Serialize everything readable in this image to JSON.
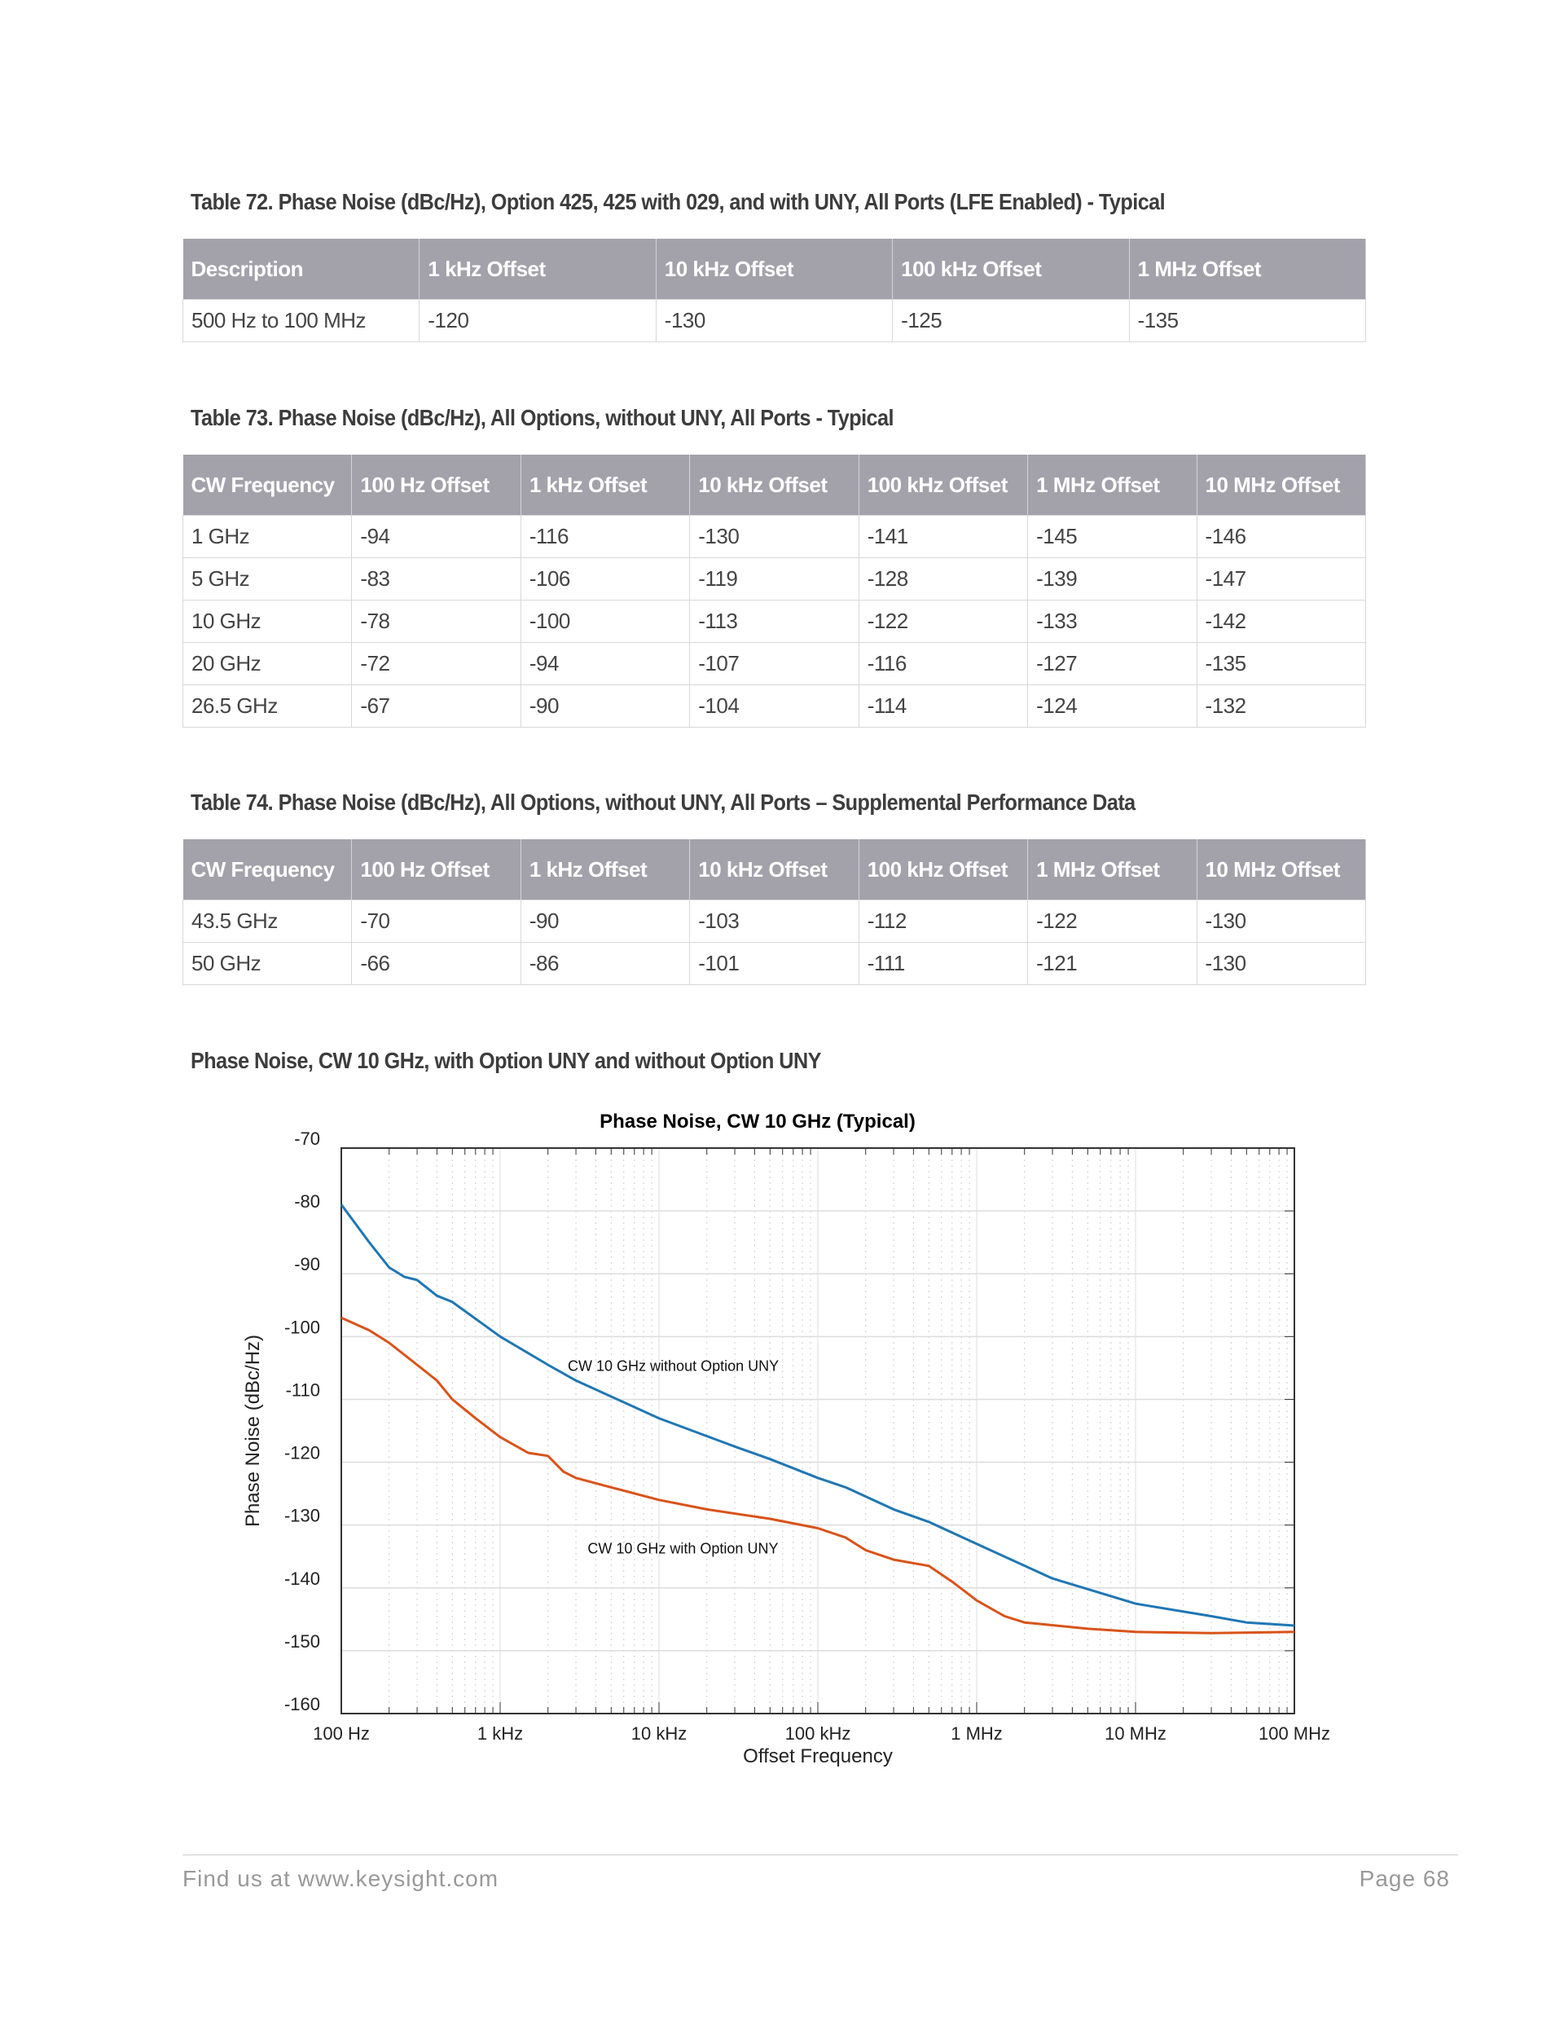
{
  "table72": {
    "title": "Table 72. Phase Noise (dBc/Hz), Option 425, 425 with 029, and with UNY, All Ports (LFE Enabled) - Typical",
    "headers": [
      "Description",
      "1 kHz Offset",
      "10 kHz Offset",
      "100 kHz Offset",
      "1 MHz Offset"
    ],
    "rows": [
      [
        "500 Hz to 100 MHz",
        "-120",
        "-130",
        "-125",
        "-135"
      ]
    ]
  },
  "table73": {
    "title": "Table 73. Phase Noise (dBc/Hz), All Options, without UNY, All Ports - Typical",
    "headers": [
      "CW Frequency",
      "100 Hz Offset",
      "1 kHz Offset",
      "10 kHz Offset",
      "100 kHz Offset",
      "1 MHz Offset",
      "10 MHz Offset"
    ],
    "rows": [
      [
        "1 GHz",
        "-94",
        "-116",
        "-130",
        "-141",
        "-145",
        "-146"
      ],
      [
        "5 GHz",
        "-83",
        "-106",
        "-119",
        "-128",
        "-139",
        "-147"
      ],
      [
        "10 GHz",
        "-78",
        "-100",
        "-113",
        "-122",
        "-133",
        "-142"
      ],
      [
        "20 GHz",
        "-72",
        "-94",
        "-107",
        "-116",
        "-127",
        "-135"
      ],
      [
        "26.5 GHz",
        "-67",
        "-90",
        "-104",
        "-114",
        "-124",
        "-132"
      ]
    ]
  },
  "table74": {
    "title": "Table 74. Phase Noise (dBc/Hz), All Options, without UNY, All Ports – Supplemental Performance Data",
    "headers": [
      "CW Frequency",
      "100 Hz Offset",
      "1 kHz Offset",
      "10 kHz Offset",
      "100 kHz Offset",
      "1 MHz Offset",
      "10 MHz Offset"
    ],
    "rows": [
      [
        "43.5 GHz",
        "-70",
        "-90",
        "-103",
        "-112",
        "-122",
        "-130"
      ],
      [
        "50 GHz",
        "-66",
        "-86",
        "-101",
        "-111",
        "-121",
        "-130"
      ]
    ]
  },
  "chart_section_title": "Phase Noise, CW 10 GHz, with Option UNY and without Option UNY",
  "chart_data": {
    "type": "line",
    "title": "Phase Noise, CW 10 GHz (Typical)",
    "xlabel": "Offset Frequency",
    "ylabel": "Phase Noise (dBc/Hz)",
    "xscale": "log",
    "xlim": [
      100,
      100000000
    ],
    "ylim": [
      -160,
      -70
    ],
    "xticks": [
      100,
      1000,
      10000,
      100000,
      1000000,
      10000000,
      100000000
    ],
    "xtick_labels": [
      "100 Hz",
      "1 kHz",
      "10 kHz",
      "100 kHz",
      "1 MHz",
      "10 MHz",
      "100 MHz"
    ],
    "yticks": [
      -70,
      -80,
      -90,
      -100,
      -110,
      -120,
      -130,
      -140,
      -150,
      -160
    ],
    "ytick_labels": [
      "-70",
      "-80",
      "-90",
      "-100",
      "-110",
      "-120",
      "-130",
      "-140",
      "-150",
      "-160"
    ],
    "grid": true,
    "series": [
      {
        "name": "CW 10 GHz without Option UNY",
        "color": "#1f77b4",
        "x": [
          100,
          150,
          200,
          250,
          300,
          400,
          500,
          1000,
          2000,
          3000,
          10000,
          30000,
          50000,
          100000,
          150000,
          300000,
          500000,
          1000000,
          3000000,
          10000000,
          30000000,
          50000000,
          100000000
        ],
        "y": [
          -79,
          -85,
          -89,
          -90.5,
          -91,
          -93.5,
          -94.5,
          -100,
          -104.5,
          -107,
          -113,
          -117.5,
          -119.5,
          -122.5,
          -124,
          -127.5,
          -129.5,
          -133,
          -138.5,
          -142.5,
          -144.5,
          -145.5,
          -146
        ]
      },
      {
        "name": "CW 10 GHz with Option UNY",
        "color": "#d95319",
        "x": [
          100,
          150,
          200,
          300,
          400,
          500,
          700,
          1000,
          1500,
          2000,
          2500,
          3000,
          5000,
          10000,
          20000,
          50000,
          100000,
          150000,
          200000,
          300000,
          500000,
          700000,
          1000000,
          1500000,
          2000000,
          5000000,
          10000000,
          30000000,
          100000000
        ],
        "y": [
          -97,
          -99,
          -101,
          -104.5,
          -107,
          -110,
          -113,
          -116,
          -118.5,
          -119,
          -121.5,
          -122.5,
          -124,
          -126,
          -127.5,
          -129,
          -130.5,
          -132,
          -134,
          -135.5,
          -136.5,
          -139,
          -142,
          -144.5,
          -145.5,
          -146.5,
          -147,
          -147.2,
          -147
        ]
      }
    ]
  },
  "footer": {
    "left": "Find us at www.keysight.com",
    "right": "Page 68"
  }
}
